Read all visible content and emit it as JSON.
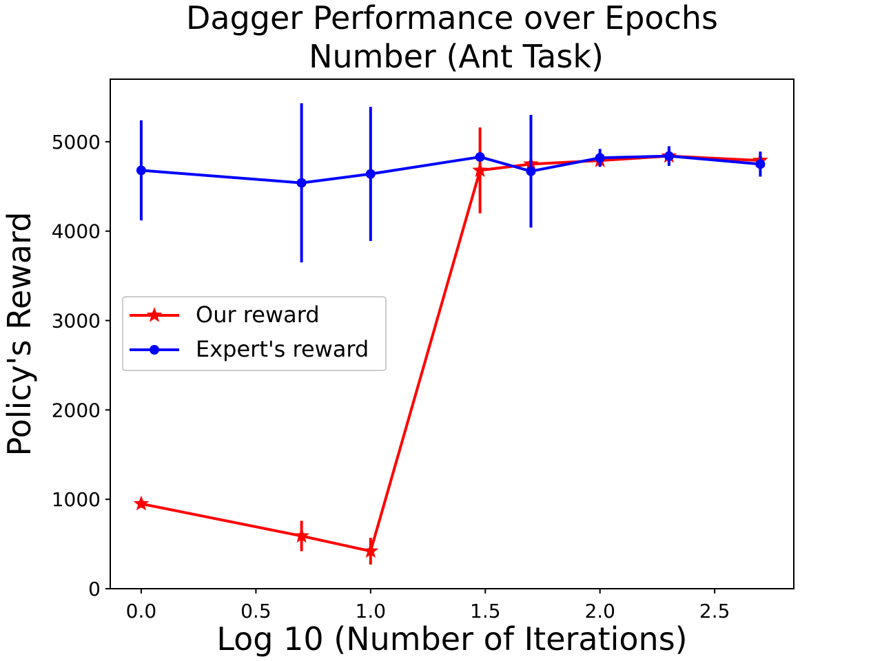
{
  "chart_data": {
    "type": "line",
    "title_lines": [
      "Dagger Performance over Epochs",
      "Number (Ant Task)"
    ],
    "xlabel": "Log 10 (Number of Iterations)",
    "ylabel": "Policy's Reward",
    "xlim": [
      -0.135,
      2.845
    ],
    "ylim": [
      0,
      5700
    ],
    "x_ticks": [
      0.0,
      0.5,
      1.0,
      1.5,
      2.0,
      2.5
    ],
    "x_tick_labels": [
      "0.0",
      "0.5",
      "1.0",
      "1.5",
      "2.0",
      "2.5"
    ],
    "y_ticks": [
      0,
      1000,
      2000,
      3000,
      4000,
      5000
    ],
    "y_tick_labels": [
      "0",
      "1000",
      "2000",
      "3000",
      "4000",
      "5000"
    ],
    "grid": false,
    "legend_position": "center-left",
    "x": [
      0.0,
      0.699,
      1.0,
      1.477,
      1.699,
      2.0,
      2.301,
      2.699
    ],
    "series": [
      {
        "name": "Our reward",
        "color": "#ff0000",
        "marker": "star",
        "values": [
          950,
          590,
          420,
          4680,
          4750,
          4790,
          4840,
          4790
        ],
        "errors": [
          45,
          170,
          150,
          480,
          60,
          70,
          80,
          90
        ]
      },
      {
        "name": "Expert's reward",
        "color": "#0000ff",
        "marker": "circle",
        "values": [
          4680,
          4540,
          4640,
          4830,
          4670,
          4820,
          4840,
          4750
        ],
        "errors": [
          560,
          890,
          750,
          40,
          630,
          100,
          110,
          140
        ]
      }
    ]
  }
}
